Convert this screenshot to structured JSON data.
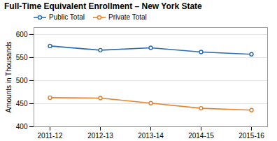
{
  "chart_data": {
    "type": "line",
    "title": "Full-Time Equivalent Enrollment – New York State",
    "ylabel": "Amounts in Thousands",
    "categories": [
      "2011-12",
      "2012-13",
      "2013-14",
      "2014-15",
      "2015-16"
    ],
    "series": [
      {
        "name": "Public Total",
        "color": "#2B6DB5",
        "values": [
          575,
          566,
          571,
          562,
          557
        ]
      },
      {
        "name": "Private Total",
        "color": "#E8822A",
        "values": [
          463,
          462,
          451,
          440,
          436
        ]
      }
    ],
    "ylim": [
      400,
      615
    ],
    "yticks": [
      400,
      450,
      500,
      550,
      600
    ],
    "grid": true,
    "legend": "upper left",
    "marker": "circle"
  }
}
